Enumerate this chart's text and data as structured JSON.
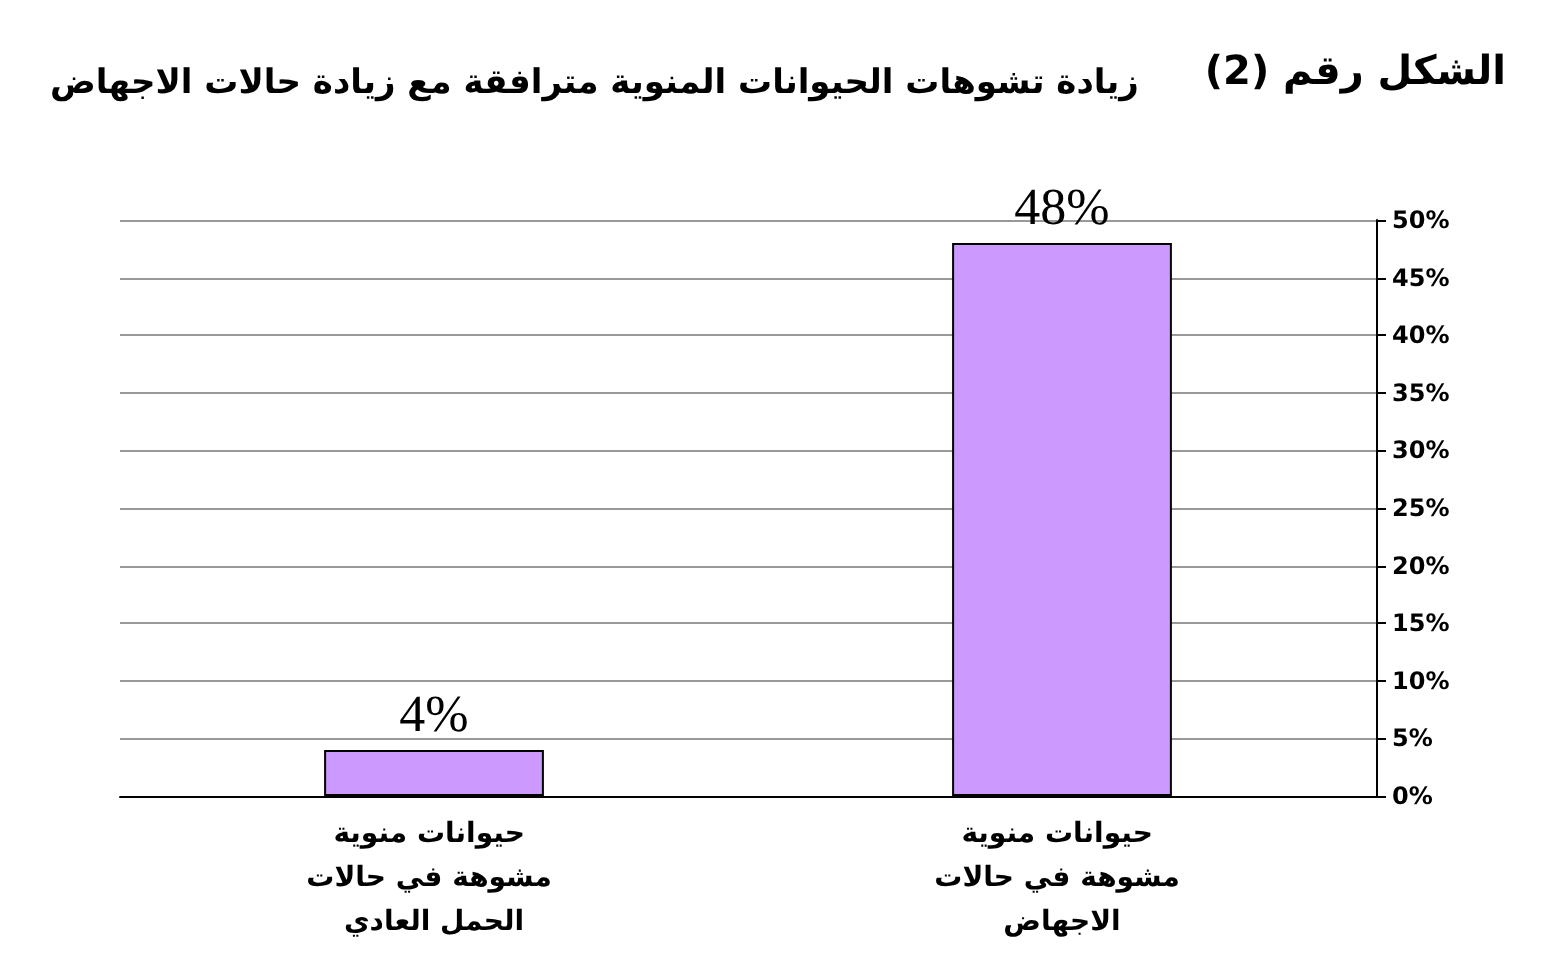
{
  "chart_data": {
    "type": "bar",
    "title": "زيادة تشوهات الحيوانات المنوية مترافقة مع زيادة حالات الاجهاض",
    "subtitle": "الشكل رقم (2)",
    "categories": [
      "حيوانات منوية مشوهة في حالات الحمل العادي",
      "حيوانات منوية مشوهة في حالات الاجهاض"
    ],
    "values": [
      4,
      48
    ],
    "value_labels": [
      "4%",
      "48%"
    ],
    "color": "#cc99ff",
    "ylim": [
      0,
      50
    ],
    "yticks": [
      {
        "value": 0,
        "label": "0%"
      },
      {
        "value": 5,
        "label": "5%"
      },
      {
        "value": 10,
        "label": "10%"
      },
      {
        "value": 15,
        "label": "15%"
      },
      {
        "value": 20,
        "label": "20%"
      },
      {
        "value": 25,
        "label": "25%"
      },
      {
        "value": 30,
        "label": "30%"
      },
      {
        "value": 35,
        "label": "35%"
      },
      {
        "value": 40,
        "label": "40%"
      },
      {
        "value": 45,
        "label": "45%"
      },
      {
        "value": 50,
        "label": "50%"
      }
    ],
    "grid": "y"
  }
}
